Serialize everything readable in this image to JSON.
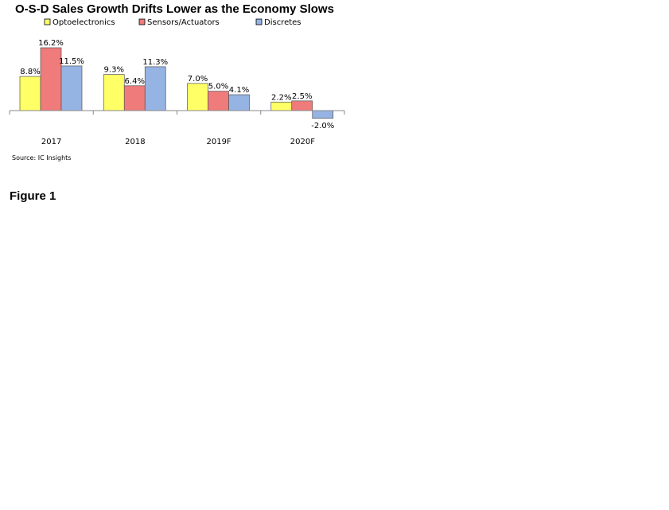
{
  "chart_data": {
    "type": "bar",
    "title": "O-S-D Sales Growth Drifts Lower as the Economy Slows",
    "categories": [
      "2017",
      "2018",
      "2019F",
      "2020F"
    ],
    "series": [
      {
        "name": "Optoelectronics",
        "values": [
          8.8,
          9.3,
          7.0,
          2.2
        ],
        "labels": [
          "8.8%",
          "9.3%",
          "7.0%",
          "2.2%"
        ],
        "color": "#ffff66"
      },
      {
        "name": "Sensors/Actuators",
        "values": [
          16.2,
          6.4,
          5.0,
          2.5
        ],
        "labels": [
          "16.2%",
          "6.4%",
          "5.0%",
          "2.5%"
        ],
        "color": "#ef7b7b"
      },
      {
        "name": "Discretes",
        "values": [
          11.5,
          11.3,
          4.1,
          -2.0
        ],
        "labels": [
          "11.5%",
          "11.3%",
          "4.1%",
          "-2.0%"
        ],
        "color": "#95b3e3"
      }
    ],
    "xlabel": "",
    "ylabel": "",
    "ylim": [
      -2.0,
      16.2
    ],
    "grid": false,
    "legend_position": "top",
    "source": "Source: IC Insights"
  },
  "caption": "Figure 1"
}
